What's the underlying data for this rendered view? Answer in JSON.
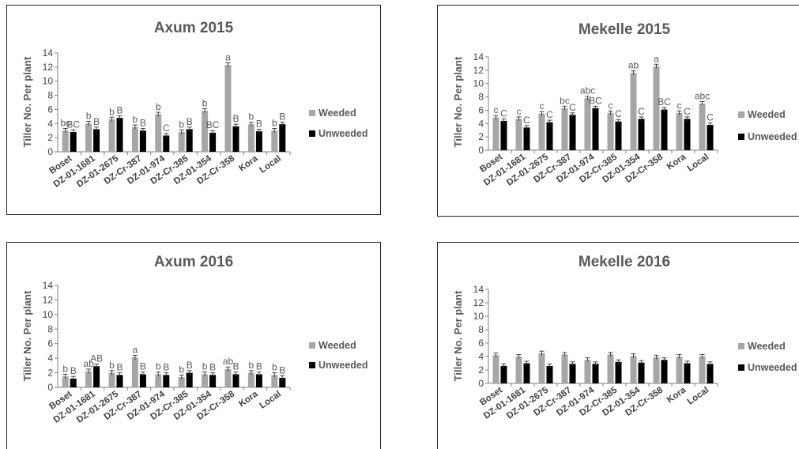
{
  "colors": {
    "weeded": "#a6a6a6",
    "unweeded": "#000000",
    "axis": "#7f7f7f",
    "text": "#595959"
  },
  "chart_data": [
    {
      "type": "bar",
      "title": "Axum 2015",
      "ylabel": "Tiller No. Per plant",
      "ylim": [
        0,
        14
      ],
      "yticks": [
        "0",
        "2",
        "4",
        "6",
        "8",
        "10",
        "12",
        "14"
      ],
      "legend_position": "right",
      "categories": [
        "Boset",
        "DZ-01-1681",
        "DZ-01-2675",
        "DZ-Cr-387",
        "DZ-01-974",
        "DZ-Cr-385",
        "DZ-01-354",
        "DZ-Cr-358",
        "Kora",
        "Local"
      ],
      "series": [
        {
          "name": "Weeded",
          "values": [
            3.0,
            4.0,
            4.6,
            3.5,
            5.3,
            2.8,
            5.8,
            12.3,
            3.9,
            3.0
          ],
          "labels": [
            "bc",
            "b",
            "b",
            "b",
            "b",
            "b",
            "b",
            "a",
            "b",
            "b"
          ]
        },
        {
          "name": "Unweeded",
          "values": [
            2.8,
            3.2,
            4.8,
            3.0,
            2.3,
            3.2,
            2.7,
            3.6,
            2.9,
            3.9
          ],
          "labels": [
            "BC",
            "B",
            "B",
            "B",
            "C",
            "B",
            "BC",
            "B",
            "B",
            "B"
          ]
        }
      ]
    },
    {
      "type": "bar",
      "title": "Mekelle 2015",
      "ylabel": "Tiller No. Per plant",
      "ylim": [
        0,
        14
      ],
      "yticks": [
        "0",
        "2",
        "4",
        "6",
        "8",
        "10",
        "12",
        "14"
      ],
      "legend_position": "right",
      "categories": [
        "Boset",
        "DZ-01-1681",
        "DZ-01-2675",
        "DZ-Cr-387",
        "DZ-01-974",
        "DZ-Cr-385",
        "DZ-01-354",
        "DZ-Cr-358",
        "Kora",
        "Local"
      ],
      "series": [
        {
          "name": "Weeded",
          "values": [
            4.9,
            4.7,
            5.5,
            6.3,
            7.8,
            5.6,
            11.6,
            12.6,
            5.6,
            7.0
          ],
          "labels": [
            "c",
            "c",
            "c",
            "bc",
            "abc",
            "c",
            "ab",
            "a",
            "c",
            "abc"
          ]
        },
        {
          "name": "Unweeded",
          "values": [
            4.4,
            3.4,
            4.2,
            5.3,
            6.3,
            4.3,
            4.7,
            6.1,
            4.7,
            3.8
          ],
          "labels": [
            "C",
            "C",
            "C",
            "C",
            "BC",
            "C",
            "C",
            "BC",
            "C",
            "C"
          ]
        }
      ]
    },
    {
      "type": "bar",
      "title": "Axum 2016",
      "ylabel": "Tiller No. Per plant",
      "ylim": [
        0,
        14
      ],
      "yticks": [
        "0",
        "2",
        "4",
        "6",
        "8",
        "10",
        "12",
        "14"
      ],
      "legend_position": "right",
      "categories": [
        "Boset",
        "DZ-01-1681",
        "DZ-01-2675",
        "DZ-Cr-387",
        "DZ-01-974",
        "DZ-Cr-385",
        "DZ-01-354",
        "DZ-Cr-358",
        "Kora",
        "Local"
      ],
      "series": [
        {
          "name": "Weeded",
          "values": [
            1.5,
            2.2,
            2.0,
            4.1,
            1.8,
            1.4,
            1.8,
            2.5,
            2.0,
            1.7
          ],
          "labels": [
            "b",
            "ab",
            "b",
            "a",
            "b",
            "b",
            "b",
            "ab",
            "b",
            "b"
          ]
        },
        {
          "name": "Unweeded",
          "values": [
            1.2,
            2.9,
            1.7,
            1.8,
            1.7,
            2.0,
            1.7,
            1.8,
            1.8,
            1.3
          ],
          "labels": [
            "B",
            "AB",
            "B",
            "B",
            "B",
            "B",
            "B",
            "B",
            "B",
            "B"
          ]
        }
      ]
    },
    {
      "type": "bar",
      "title": "Mekelle 2016",
      "ylabel": "Tiller No. Per plant",
      "ylim": [
        0,
        14
      ],
      "yticks": [
        "0",
        "2",
        "4",
        "6",
        "8",
        "10",
        "12",
        "14"
      ],
      "legend_position": "right",
      "categories": [
        "Boset",
        "DZ-01-1681",
        "DZ-01-2675",
        "DZ-Cr-387",
        "DZ-01-974",
        "DZ-Cr-385",
        "DZ-01-354",
        "DZ-Cr-358",
        "Kora",
        "Local"
      ],
      "series": [
        {
          "name": "Weeded",
          "values": [
            4.2,
            4.0,
            4.5,
            4.3,
            3.5,
            4.3,
            4.1,
            3.9,
            4.0,
            4.0
          ],
          "labels": []
        },
        {
          "name": "Unweeded",
          "values": [
            2.6,
            3.0,
            2.6,
            2.9,
            2.9,
            3.2,
            3.1,
            3.5,
            3.0,
            2.9
          ],
          "labels": []
        }
      ]
    }
  ]
}
